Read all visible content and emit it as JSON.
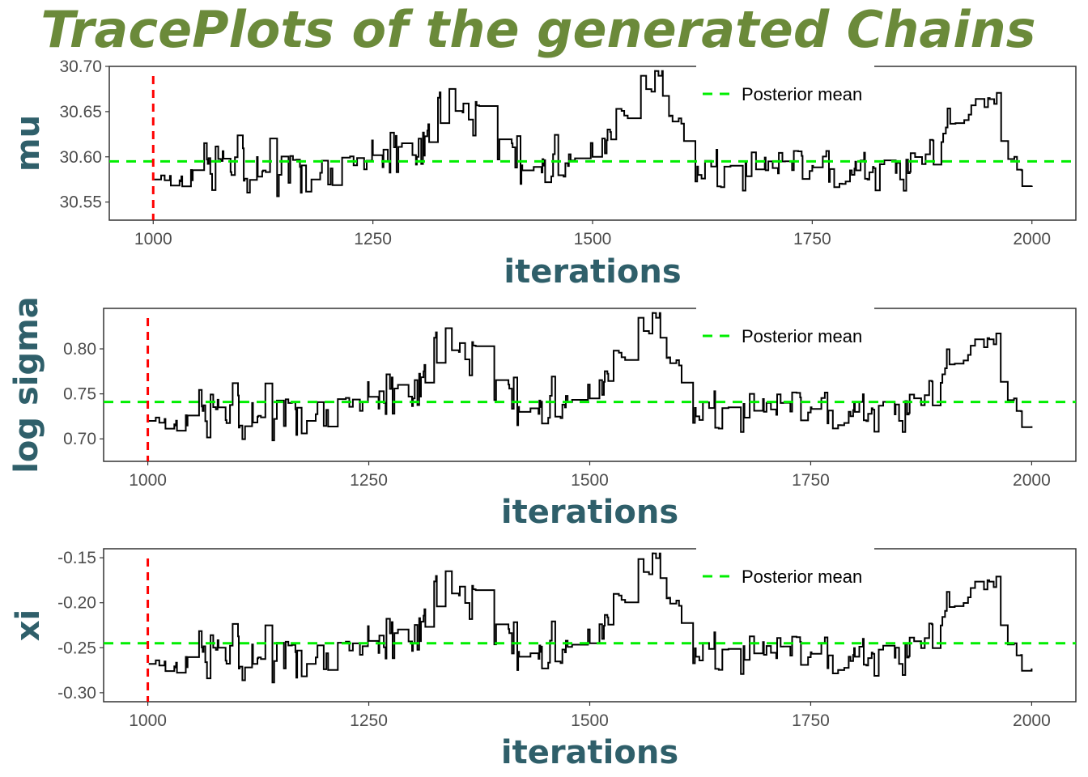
{
  "title": "TracePlots of the generated Chains",
  "colors": {
    "title": "#6b8a3a",
    "axis_title": "#2f5f6a",
    "trace": "#000000",
    "burnin": "#ff0000",
    "mean": "#00ee00",
    "tick_text": "#4d4d4d",
    "frame": "#333333"
  },
  "chart_data": [
    {
      "type": "line",
      "ylabel": "mu",
      "xlabel": "iterations",
      "xlim": [
        950,
        2050
      ],
      "ylim": [
        30.53,
        30.7
      ],
      "xticks": [
        "1000",
        "1250",
        "1500",
        "1750",
        "2000"
      ],
      "yticks": [
        "30.55",
        "30.60",
        "30.65",
        "30.70"
      ],
      "burnin_x": 1000,
      "posterior_mean": 30.595,
      "legend": "Posterior mean",
      "legend_position": "top-right",
      "seed": 17,
      "x": [
        1001,
        1080,
        1180,
        1300,
        1337,
        1420,
        1500,
        1571,
        1620,
        1700,
        1750,
        1800,
        1850,
        1950,
        1980,
        2000
      ],
      "values": [
        30.575,
        30.598,
        30.575,
        30.6,
        30.675,
        30.585,
        30.6,
        30.695,
        30.58,
        30.595,
        30.59,
        30.585,
        30.575,
        30.665,
        30.6,
        30.568
      ]
    },
    {
      "type": "line",
      "ylabel": "log sigma",
      "xlabel": "iterations",
      "xlim": [
        950,
        2050
      ],
      "ylim": [
        0.675,
        0.845
      ],
      "xticks": [
        "1000",
        "1250",
        "1500",
        "1750",
        "2000"
      ],
      "yticks": [
        "0.70",
        "0.75",
        "0.80"
      ],
      "burnin_x": 1000,
      "posterior_mean": 0.741,
      "legend": "Posterior mean",
      "legend_position": "top-right",
      "seed": 17,
      "x": [
        1001,
        1080,
        1180,
        1300,
        1337,
        1420,
        1500,
        1571,
        1620,
        1700,
        1750,
        1800,
        1850,
        1950,
        1980,
        2000
      ],
      "values": [
        0.72,
        0.735,
        0.72,
        0.745,
        0.823,
        0.73,
        0.745,
        0.84,
        0.725,
        0.74,
        0.735,
        0.73,
        0.72,
        0.812,
        0.745,
        0.714
      ]
    },
    {
      "type": "line",
      "ylabel": "xi",
      "xlabel": "iterations",
      "xlim": [
        950,
        2050
      ],
      "ylim": [
        -0.31,
        -0.14
      ],
      "xticks": [
        "1000",
        "1250",
        "1500",
        "1750",
        "2000"
      ],
      "yticks": [
        "-0.15",
        "-0.20",
        "-0.25",
        "-0.30"
      ],
      "burnin_x": 1000,
      "posterior_mean": -0.245,
      "legend": "Posterior mean",
      "legend_position": "top-right",
      "seed": 17,
      "x": [
        1001,
        1080,
        1180,
        1300,
        1337,
        1420,
        1500,
        1571,
        1620,
        1700,
        1750,
        1800,
        1850,
        1950,
        1980,
        2000
      ],
      "values": [
        -0.268,
        -0.25,
        -0.268,
        -0.245,
        -0.165,
        -0.26,
        -0.245,
        -0.145,
        -0.26,
        -0.248,
        -0.255,
        -0.26,
        -0.268,
        -0.175,
        -0.245,
        -0.273
      ]
    }
  ]
}
